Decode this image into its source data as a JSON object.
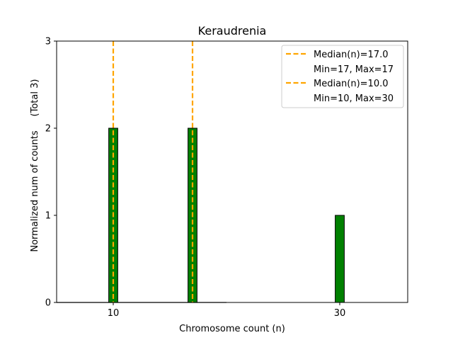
{
  "chart_data": {
    "type": "bar",
    "title": "Keraudrenia",
    "xlabel": "Chromosome count (n)",
    "ylabel": "Normalized num of counts",
    "ylabel_note": "(Total 3)",
    "xlim": [
      5,
      36
    ],
    "ylim": [
      0,
      3
    ],
    "xticks": [
      10,
      30
    ],
    "yticks": [
      0,
      1,
      2,
      3
    ],
    "bar_width": 0.8,
    "bar_color": "#008000",
    "bar_edge_color": "#000000",
    "bars": [
      {
        "x": 10,
        "value": 2
      },
      {
        "x": 17,
        "value": 2
      },
      {
        "x": 30,
        "value": 1
      }
    ],
    "baseline_extent": [
      5,
      20
    ],
    "median_lines": [
      {
        "x": 17,
        "label": "Median(n)=17.0",
        "range_label": "Min=17, Max=17",
        "color": "#ffa500"
      },
      {
        "x": 10,
        "label": "Median(n)=10.0",
        "range_label": "Min=10, Max=30",
        "color": "#ffa500"
      }
    ],
    "legend_position": "top-right",
    "grid": false
  }
}
